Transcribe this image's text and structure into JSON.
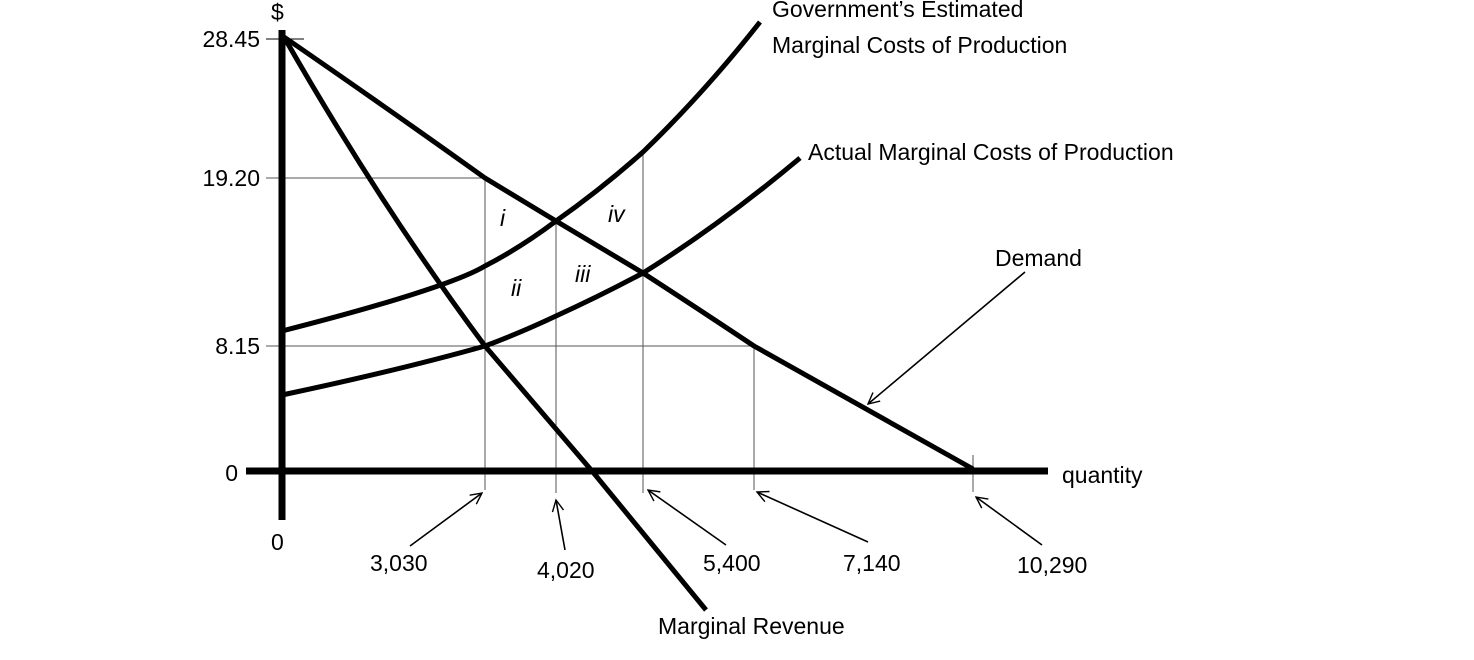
{
  "y_axis": {
    "label": "$",
    "ticks": [
      "28.45",
      "19.20",
      "8.15",
      "0"
    ]
  },
  "x_axis": {
    "label": "quantity",
    "origin": "0",
    "ticks": [
      "3,030",
      "4,020",
      "5,400",
      "7,140",
      "10,290"
    ]
  },
  "curves": {
    "gov_mc_line1": "Government’s Estimated",
    "gov_mc_line2": "Marginal Costs of Production",
    "actual_mc": "Actual Marginal Costs of Production",
    "demand": "Demand",
    "marginal_revenue": "Marginal Revenue"
  },
  "regions": [
    "i",
    "ii",
    "iii",
    "iv"
  ],
  "colors": {
    "lines": "#000000",
    "background": "#ffffff"
  }
}
